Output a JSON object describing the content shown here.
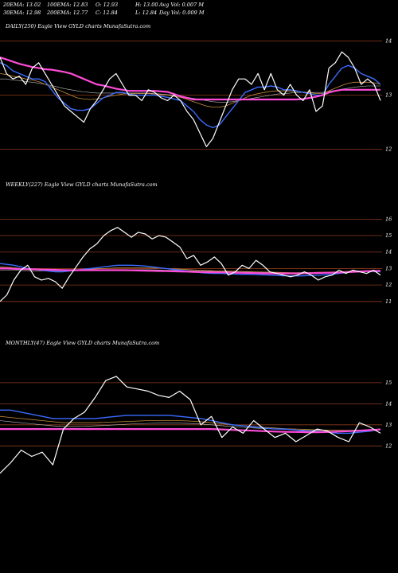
{
  "header": {
    "stats": [
      "20EMA: 13.02",
      "100EMA: 12.83",
      "O: 12.93",
      "H: 13.00",
      "Avg Vol: 0.007 M",
      "30EMA: 12.98",
      "200EMA: 12.77",
      "C: 12.84",
      "L: 12.84",
      "Day Vol: 0.009 M"
    ]
  },
  "colors": {
    "background": "#000000",
    "gridline": "#8b3a1a",
    "price": "#ffffff",
    "ema_short": "#3a6cff",
    "ema_long": "#ff4bd8",
    "ema_mid": "#c58a3a",
    "ema_gray": "#bbbbbb"
  },
  "chart_data": [
    {
      "type": "line",
      "title": "DAILY(250) Eagle View GYLD charts MunafaSutra.com",
      "yticks": [
        14,
        13,
        12
      ],
      "ylim": [
        11.7,
        14.2
      ],
      "series": [
        {
          "role": "price",
          "values": [
            13.7,
            13.4,
            13.3,
            13.35,
            13.2,
            13.5,
            13.6,
            13.4,
            13.2,
            13.0,
            12.8,
            12.7,
            12.6,
            12.5,
            12.75,
            12.9,
            13.1,
            13.3,
            13.4,
            13.2,
            13.0,
            13.0,
            12.9,
            13.1,
            13.05,
            12.95,
            12.9,
            13.0,
            12.9,
            12.7,
            12.55,
            12.3,
            12.05,
            12.2,
            12.5,
            12.8,
            13.1,
            13.3,
            13.3,
            13.2,
            13.4,
            13.1,
            13.4,
            13.1,
            13.0,
            13.2,
            13.0,
            12.9,
            13.1,
            12.7,
            12.8,
            13.5,
            13.6,
            13.8,
            13.7,
            13.5,
            13.2,
            13.3,
            13.2,
            12.9
          ]
        },
        {
          "role": "ema_short",
          "values": [
            13.6,
            13.55,
            13.45,
            13.4,
            13.35,
            13.3,
            13.3,
            13.25,
            13.1,
            12.95,
            12.85,
            12.75,
            12.72,
            12.72,
            12.75,
            12.85,
            12.95,
            13.0,
            13.05,
            13.05,
            13.02,
            13.0,
            13.0,
            13.0,
            13.0,
            12.98,
            12.96,
            12.93,
            12.9,
            12.8,
            12.7,
            12.55,
            12.45,
            12.4,
            12.45,
            12.6,
            12.75,
            12.9,
            13.05,
            13.1,
            13.15,
            13.15,
            13.17,
            13.15,
            13.1,
            13.1,
            13.08,
            13.05,
            13.03,
            13.0,
            13.0,
            13.2,
            13.35,
            13.5,
            13.55,
            13.5,
            13.4,
            13.35,
            13.3,
            13.2
          ]
        },
        {
          "role": "ema_mid",
          "values": [
            13.4,
            13.38,
            13.35,
            13.33,
            13.3,
            13.28,
            13.25,
            13.2,
            13.15,
            13.1,
            13.05,
            13.0,
            12.95,
            12.93,
            12.92,
            12.93,
            12.95,
            12.98,
            13.0,
            13.02,
            13.03,
            13.03,
            13.03,
            13.03,
            13.02,
            13.01,
            13.0,
            12.98,
            12.96,
            12.92,
            12.88,
            12.84,
            12.8,
            12.78,
            12.78,
            12.8,
            12.85,
            12.9,
            12.95,
            13.0,
            13.03,
            13.05,
            13.07,
            13.08,
            13.08,
            13.08,
            13.07,
            13.06,
            13.05,
            13.03,
            13.03,
            13.08,
            13.13,
            13.18,
            13.22,
            13.24,
            13.24,
            13.24,
            13.23,
            13.2
          ]
        },
        {
          "role": "ema_long",
          "values": [
            13.7,
            13.66,
            13.62,
            13.58,
            13.55,
            13.52,
            13.5,
            13.48,
            13.47,
            13.45,
            13.43,
            13.4,
            13.35,
            13.3,
            13.25,
            13.2,
            13.18,
            13.15,
            13.12,
            13.1,
            13.08,
            13.08,
            13.08,
            13.08,
            13.08,
            13.07,
            13.06,
            13.02,
            12.98,
            12.95,
            12.92,
            12.92,
            12.92,
            12.92,
            12.92,
            12.92,
            12.92,
            12.92,
            12.92,
            12.92,
            12.92,
            12.92,
            12.92,
            12.92,
            12.92,
            12.92,
            12.92,
            12.93,
            12.95,
            12.97,
            13.0,
            13.05,
            13.08,
            13.1,
            13.1,
            13.1,
            13.1,
            13.1,
            13.1,
            13.1
          ]
        },
        {
          "role": "ema_gray",
          "values": [
            13.3,
            13.3,
            13.28,
            13.27,
            13.25,
            13.24,
            13.22,
            13.2,
            13.18,
            13.15,
            13.12,
            13.1,
            13.08,
            13.06,
            13.05,
            13.04,
            13.04,
            13.04,
            13.04,
            13.04,
            13.04,
            13.04,
            13.04,
            13.04,
            13.03,
            13.02,
            13.01,
            13.0,
            12.98,
            12.96,
            12.94,
            12.92,
            12.9,
            12.88,
            12.87,
            12.87,
            12.88,
            12.9,
            12.92,
            12.94,
            12.96,
            12.98,
            13.0,
            13.02,
            13.03,
            13.04,
            13.05,
            13.05,
            13.05,
            13.05,
            13.05,
            13.07,
            13.09,
            13.11,
            13.13,
            13.15,
            13.16,
            13.17,
            13.17,
            13.17
          ]
        }
      ]
    },
    {
      "type": "line",
      "title": "WEEKLY(227) Eagle View GYLD charts MunafaSutra.com",
      "yticks": [
        16,
        15,
        14,
        13,
        12,
        11
      ],
      "ylim": [
        10.7,
        16.5
      ],
      "series": [
        {
          "role": "price",
          "values": [
            11.0,
            11.4,
            12.3,
            12.9,
            13.2,
            12.5,
            12.3,
            12.4,
            12.2,
            11.8,
            12.5,
            13.1,
            13.7,
            14.2,
            14.5,
            15.0,
            15.3,
            15.5,
            15.2,
            14.9,
            15.2,
            15.1,
            14.8,
            15.0,
            14.9,
            14.6,
            14.3,
            13.6,
            13.8,
            13.2,
            13.4,
            13.7,
            13.3,
            12.6,
            12.8,
            13.2,
            13.0,
            13.5,
            13.2,
            12.8,
            12.7,
            12.6,
            12.5,
            12.6,
            12.8,
            12.6,
            12.3,
            12.5,
            12.6,
            12.9,
            12.7,
            12.9,
            12.8,
            12.7,
            12.9,
            12.6
          ]
        },
        {
          "role": "ema_short",
          "values": [
            13.3,
            13.25,
            13.2,
            13.1,
            13.0,
            12.95,
            12.9,
            12.85,
            12.8,
            12.8,
            12.85,
            12.9,
            12.95,
            13.0,
            13.05,
            13.1,
            13.15,
            13.2,
            13.2,
            13.2,
            13.18,
            13.15,
            13.1,
            13.05,
            13.0,
            12.95,
            12.9,
            12.85,
            12.8,
            12.75,
            12.72,
            12.7,
            12.7,
            12.68,
            12.66,
            12.65,
            12.65,
            12.64,
            12.62,
            12.6,
            12.58,
            12.56,
            12.55,
            12.55,
            12.56,
            12.58,
            12.6,
            12.62,
            12.65,
            12.7,
            12.75,
            12.8,
            12.82,
            12.82,
            12.82,
            12.8
          ]
        },
        {
          "role": "ema_mid",
          "values": [
            13.1,
            13.08,
            13.05,
            13.0,
            12.98,
            12.96,
            12.94,
            12.92,
            12.9,
            12.9,
            12.9,
            12.92,
            12.94,
            12.96,
            12.98,
            13.0,
            13.02,
            13.04,
            13.05,
            13.05,
            13.05,
            13.04,
            13.03,
            13.02,
            13.0,
            12.98,
            12.96,
            12.94,
            12.92,
            12.9,
            12.88,
            12.86,
            12.85,
            12.84,
            12.83,
            12.82,
            12.81,
            12.8,
            12.79,
            12.78,
            12.77,
            12.76,
            12.75,
            12.75,
            12.75,
            12.76,
            12.77,
            12.78,
            12.79,
            12.8,
            12.82,
            12.84,
            12.85,
            12.86,
            12.86,
            12.86
          ]
        },
        {
          "role": "ema_long",
          "values": [
            13.0,
            13.0,
            12.98,
            12.97,
            12.96,
            12.95,
            12.94,
            12.93,
            12.92,
            12.91,
            12.9,
            12.9,
            12.9,
            12.9,
            12.9,
            12.9,
            12.9,
            12.9,
            12.9,
            12.89,
            12.88,
            12.87,
            12.86,
            12.85,
            12.84,
            12.83,
            12.82,
            12.81,
            12.8,
            12.79,
            12.78,
            12.77,
            12.77,
            12.76,
            12.75,
            12.74,
            12.73,
            12.72,
            12.71,
            12.7,
            12.7,
            12.7,
            12.7,
            12.7,
            12.71,
            12.72,
            12.73,
            12.74,
            12.75,
            12.76,
            12.78,
            12.8,
            12.82,
            12.84,
            12.85,
            12.86
          ]
        },
        {
          "role": "ema_gray",
          "values": [
            12.9,
            12.9,
            12.9,
            12.88,
            12.87,
            12.86,
            12.86,
            12.85,
            12.85,
            12.85,
            12.85,
            12.86,
            12.87,
            12.88,
            12.89,
            12.9,
            12.91,
            12.92,
            12.93,
            12.93,
            12.93,
            12.93,
            12.92,
            12.91,
            12.9,
            12.89,
            12.88,
            12.87,
            12.86,
            12.85,
            12.84,
            12.83,
            12.82,
            12.81,
            12.8,
            12.8,
            12.79,
            12.78,
            12.77,
            12.76,
            12.75,
            12.75,
            12.74,
            12.74,
            12.74,
            12.75,
            12.75,
            12.76,
            12.77,
            12.78,
            12.79,
            12.8,
            12.81,
            12.82,
            12.83,
            12.84
          ]
        }
      ]
    },
    {
      "type": "line",
      "title": "MONTHLY(47) Eagle View GYLD charts MunafaSutra.com",
      "yticks": [
        15,
        14,
        13,
        12
      ],
      "ylim": [
        10.5,
        15.6
      ],
      "series": [
        {
          "role": "price",
          "values": [
            10.7,
            11.2,
            11.8,
            11.5,
            11.7,
            11.1,
            12.8,
            13.3,
            13.6,
            14.3,
            15.1,
            15.3,
            14.8,
            14.7,
            14.6,
            14.4,
            14.3,
            14.6,
            14.2,
            13.0,
            13.4,
            12.4,
            12.9,
            12.6,
            13.2,
            12.8,
            12.4,
            12.6,
            12.2,
            12.5,
            12.8,
            12.7,
            12.4,
            12.2,
            13.1,
            12.9,
            12.6
          ]
        },
        {
          "role": "ema_short",
          "values": [
            13.7,
            13.7,
            13.6,
            13.5,
            13.4,
            13.3,
            13.3,
            13.3,
            13.3,
            13.3,
            13.35,
            13.4,
            13.45,
            13.45,
            13.45,
            13.45,
            13.45,
            13.4,
            13.35,
            13.3,
            13.2,
            13.1,
            13.0,
            12.95,
            12.9,
            12.85,
            12.8,
            12.8,
            12.75,
            12.7,
            12.7,
            12.65,
            12.6,
            12.6,
            12.65,
            12.7,
            12.8
          ]
        },
        {
          "role": "ema_mid",
          "values": [
            13.4,
            13.35,
            13.3,
            13.25,
            13.2,
            13.15,
            13.1,
            13.1,
            13.1,
            13.1,
            13.12,
            13.14,
            13.16,
            13.18,
            13.2,
            13.2,
            13.2,
            13.2,
            13.18,
            13.15,
            13.1,
            13.05,
            13.0,
            12.96,
            12.92,
            12.88,
            12.85,
            12.82,
            12.8,
            12.78,
            12.76,
            12.75,
            12.74,
            12.73,
            12.74,
            12.76,
            12.78
          ]
        },
        {
          "role": "ema_long",
          "values": [
            12.8,
            12.8,
            12.8,
            12.8,
            12.8,
            12.8,
            12.8,
            12.8,
            12.8,
            12.8,
            12.8,
            12.8,
            12.8,
            12.8,
            12.8,
            12.8,
            12.8,
            12.8,
            12.8,
            12.8,
            12.8,
            12.78,
            12.76,
            12.74,
            12.72,
            12.7,
            12.68,
            12.67,
            12.66,
            12.65,
            12.65,
            12.66,
            12.68,
            12.7,
            12.72,
            12.75,
            12.78
          ]
        },
        {
          "role": "ema_gray",
          "values": [
            13.2,
            13.15,
            13.1,
            13.05,
            13.0,
            12.95,
            12.92,
            12.92,
            12.93,
            12.95,
            12.97,
            13.0,
            13.03,
            13.05,
            13.07,
            13.08,
            13.08,
            13.08,
            13.06,
            13.04,
            13.0,
            12.96,
            12.92,
            12.88,
            12.85,
            12.82,
            12.8,
            12.78,
            12.76,
            12.75,
            12.74,
            12.74,
            12.74,
            12.74,
            12.75,
            12.77,
            12.79
          ]
        }
      ]
    }
  ]
}
